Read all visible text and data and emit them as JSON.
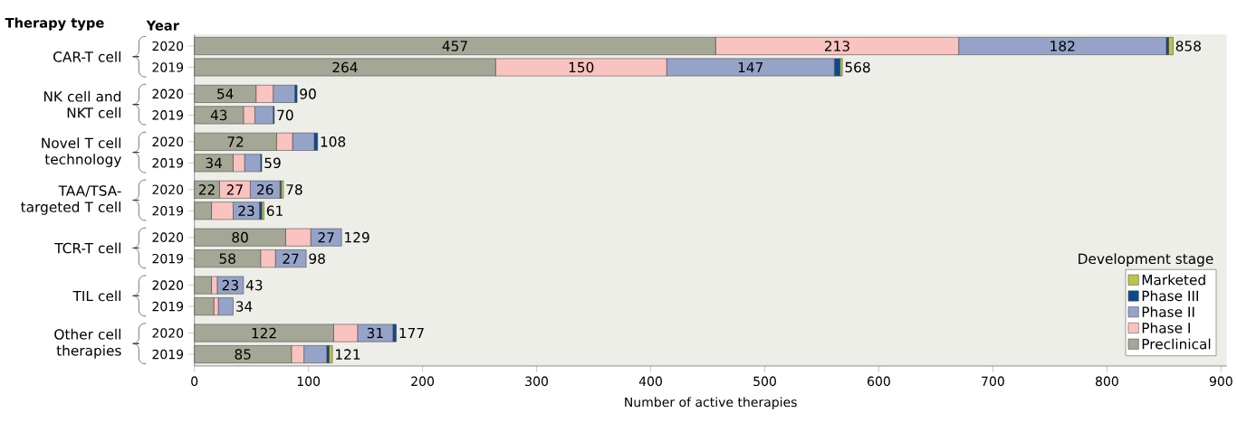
{
  "chart_data": {
    "type": "bar",
    "orientation": "horizontal",
    "stacked": true,
    "categories": [
      "2020",
      "2019",
      "2020",
      "2019",
      "2020",
      "2019",
      "2020",
      "2019",
      "2020",
      "2019",
      "2020",
      "2019",
      "2020",
      "2019"
    ],
    "series": [
      {
        "name": "Preclinical",
        "color": "#a5a796",
        "values": [
          457,
          264,
          54,
          43,
          72,
          34,
          22,
          15,
          80,
          58,
          15,
          17,
          122,
          85
        ],
        "value_labels": [
          "457",
          "264",
          "54",
          "43",
          "72",
          "34",
          "22",
          null,
          "80",
          "58",
          null,
          null,
          "122",
          "85"
        ]
      },
      {
        "name": "Phase I",
        "color": "#f9c3bf",
        "values": [
          213,
          150,
          15,
          10,
          14,
          10,
          27,
          19,
          22,
          13,
          5,
          4,
          21,
          11
        ],
        "value_labels": [
          "213",
          "150",
          null,
          null,
          null,
          null,
          "27",
          null,
          null,
          null,
          null,
          null,
          null,
          null
        ]
      },
      {
        "name": "Phase II",
        "color": "#96a3c9",
        "values": [
          182,
          147,
          19,
          16,
          19,
          14,
          26,
          23,
          27,
          27,
          23,
          13,
          31,
          20
        ],
        "value_labels": [
          "182",
          "147",
          null,
          null,
          null,
          null,
          "26",
          "23",
          "27",
          "27",
          "23",
          null,
          "31",
          null
        ]
      },
      {
        "name": "Phase III",
        "color": "#0d4a8a",
        "values": [
          2,
          5,
          2,
          1,
          3,
          1,
          1,
          2,
          0,
          0,
          0,
          0,
          3,
          2
        ]
      },
      {
        "name": "Marketed",
        "color": "#bcc44a",
        "values": [
          4,
          2,
          0,
          0,
          0,
          0,
          2,
          2,
          0,
          0,
          0,
          0,
          0,
          3
        ]
      }
    ],
    "totals": [
      "858",
      "568",
      "90",
      "70",
      "108",
      "59",
      "78",
      "61",
      "129",
      "98",
      "43",
      "34",
      "177",
      "121"
    ],
    "xlabel": "Number of active therapies",
    "legend_title": "Development stage",
    "legend": "bottom right",
    "xlim": [
      0,
      905
    ],
    "xticks": [
      0,
      100,
      200,
      300,
      400,
      500,
      600,
      700,
      800,
      900
    ],
    "annotations": [
      "Therapy type",
      "Year",
      "CAR-T cell",
      "NK cell and NKT cell",
      "Novel T cell technology",
      "TAA/TSA-targeted T cell",
      "TCR-T cell",
      "TIL cell",
      "Other cell therapies"
    ]
  }
}
